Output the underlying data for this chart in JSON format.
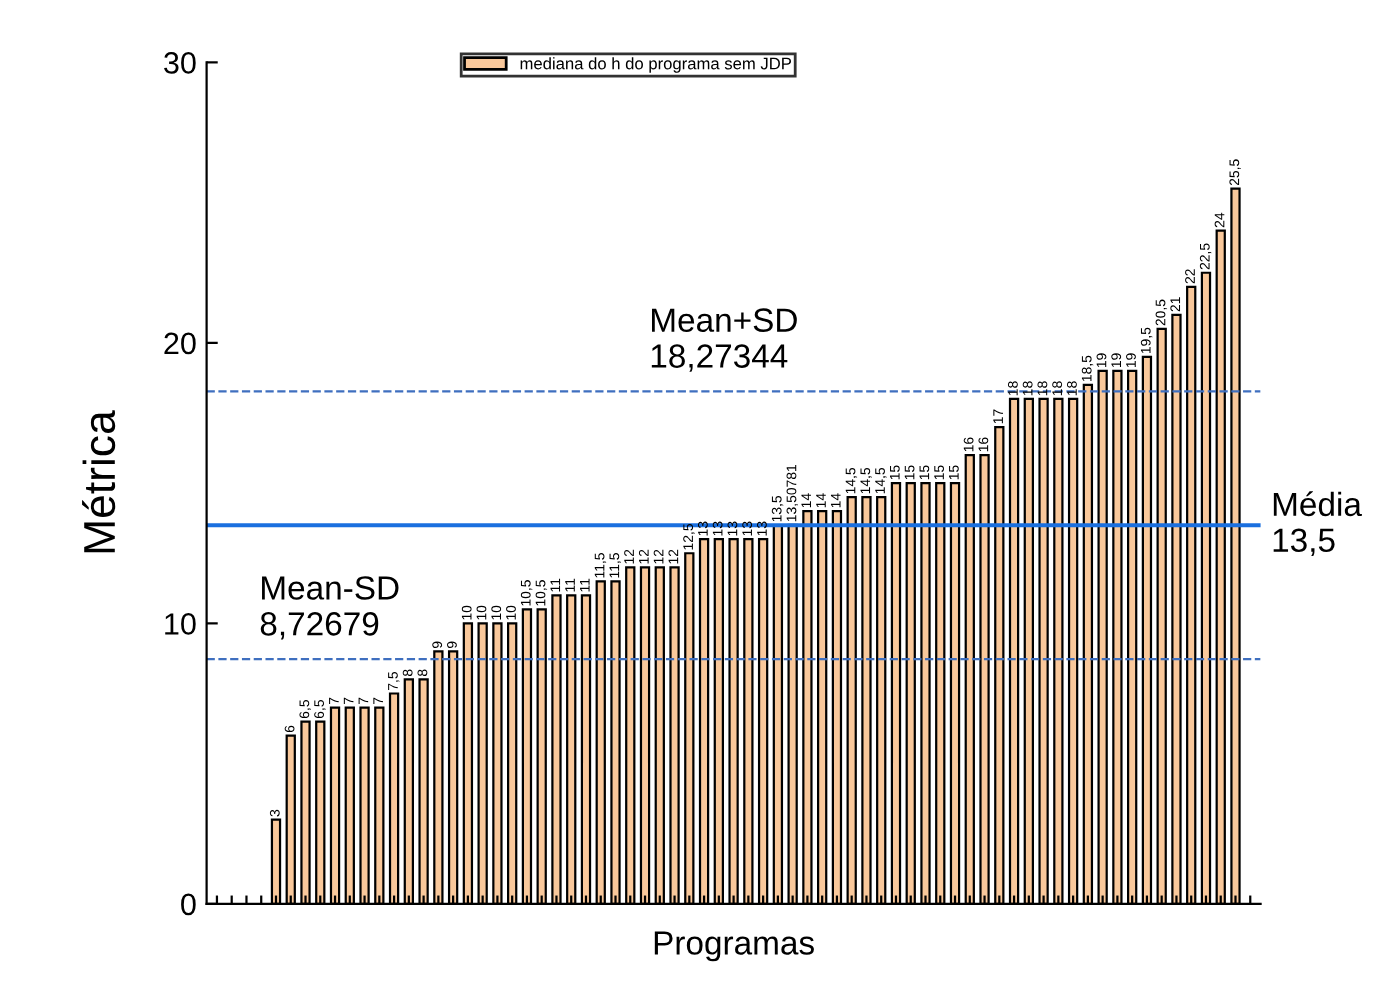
{
  "chart_data": {
    "type": "bar",
    "xlabel": "Programas",
    "ylabel": "Métrica",
    "categories": [
      null,
      null,
      null,
      null,
      null,
      null,
      null,
      null,
      null,
      null,
      null,
      null,
      null,
      null,
      null,
      null,
      null,
      null,
      null,
      null,
      null,
      null,
      null,
      null,
      null,
      null,
      null,
      null,
      null,
      null,
      null,
      null,
      null,
      null,
      null,
      null,
      null,
      null,
      null,
      null,
      null,
      null,
      null,
      null,
      null,
      null,
      null,
      null,
      null,
      null,
      null,
      null,
      null,
      null,
      null,
      null,
      null,
      null,
      null,
      null,
      null,
      null,
      null,
      null,
      null,
      null,
      null,
      null,
      null,
      null,
      null
    ],
    "series": [
      {
        "name": "mediana do h do programa sem JDP",
        "color": "#f9c89b",
        "values": [
          null,
          null,
          null,
          null,
          3,
          6,
          6.5,
          6.5,
          7,
          7,
          7,
          7,
          7.5,
          8,
          8,
          9,
          9,
          10,
          10,
          10,
          10,
          10.5,
          10.5,
          11,
          11,
          11,
          11.5,
          11.5,
          12,
          12,
          12,
          12,
          12.5,
          13,
          13,
          13,
          13,
          13,
          13.5,
          13.50781,
          14,
          14,
          14,
          14.5,
          14.5,
          14.5,
          15,
          15,
          15,
          15,
          15,
          16,
          16,
          17,
          18,
          18,
          18,
          18,
          18,
          18.5,
          19,
          19,
          19,
          19.5,
          20.5,
          21,
          22,
          22.5,
          24,
          25.5,
          null
        ],
        "value_labels": [
          null,
          null,
          null,
          null,
          "3",
          "6",
          "6,5",
          "6,5",
          "7",
          "7",
          "7",
          "7",
          "7,5",
          "8",
          "8",
          "9",
          "9",
          "10",
          "10",
          "10",
          "10",
          "10,5",
          "10,5",
          "11",
          "11",
          "11",
          "11,5",
          "11,5",
          "12",
          "12",
          "12",
          "12",
          "12,5",
          "13",
          "13",
          "13",
          "13",
          "13",
          "13,5",
          "13,50781",
          "14",
          "14",
          "14",
          "14,5",
          "14,5",
          "14,5",
          "15",
          "15",
          "15",
          "15",
          "15",
          "16",
          "16",
          "17",
          "18",
          "18",
          "18",
          "18",
          "18",
          "18,5",
          "19",
          "19",
          "19",
          "19,5",
          "20,5",
          "21",
          "22",
          "22,5",
          "24",
          "25,5",
          null
        ]
      }
    ],
    "ylim": [
      0,
      30
    ],
    "yticks": [
      0,
      10,
      20,
      30
    ],
    "grid": false,
    "legend": "top",
    "ref_lines": [
      {
        "axis": "y",
        "value": 13.5,
        "label": "Média\n13,5",
        "color": "#1a6fdf",
        "line_style": "solid"
      },
      {
        "axis": "y",
        "value": 18.27344,
        "label": "Mean+SD\n18,27344",
        "color": "#3f6fbf",
        "line_style": "dashed"
      },
      {
        "axis": "y",
        "value": 8.72679,
        "label": "Mean-SD\n8,72679",
        "color": "#3f6fbf",
        "line_style": "dashed"
      }
    ]
  }
}
